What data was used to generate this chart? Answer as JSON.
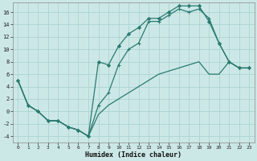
{
  "xlabel": "Humidex (Indice chaleur)",
  "bg_color": "#cce8e6",
  "grid_color": "#aad4d2",
  "line_color": "#2a7a70",
  "xlim": [
    -0.5,
    23.5
  ],
  "ylim": [
    -5,
    17.5
  ],
  "xticks": [
    0,
    1,
    2,
    3,
    4,
    5,
    6,
    7,
    8,
    9,
    10,
    11,
    12,
    13,
    14,
    15,
    16,
    17,
    18,
    19,
    20,
    21,
    22,
    23
  ],
  "yticks": [
    -4,
    -2,
    0,
    2,
    4,
    6,
    8,
    10,
    12,
    14,
    16
  ],
  "line1_x": [
    0,
    1,
    2,
    3,
    4,
    5,
    6,
    7,
    8,
    9,
    10,
    11,
    12,
    13,
    14,
    15,
    16,
    17,
    18,
    19,
    20,
    21,
    22,
    23
  ],
  "line1_y": [
    5,
    1,
    0,
    -1.5,
    -1.5,
    -2.5,
    -3,
    -4,
    8,
    7.5,
    10.5,
    12.5,
    13.5,
    15,
    15,
    16,
    17,
    17,
    17,
    14.5,
    11,
    8,
    7,
    7
  ],
  "line2_x": [
    0,
    1,
    2,
    3,
    4,
    5,
    6,
    7,
    8,
    9,
    10,
    11,
    12,
    13,
    14,
    15,
    16,
    17,
    18,
    19,
    20,
    21,
    22,
    23
  ],
  "line2_y": [
    5,
    1,
    0,
    -1.5,
    -1.5,
    -2.5,
    -3,
    -4,
    1,
    3,
    7.5,
    10,
    11,
    14.5,
    14.5,
    15.5,
    16.5,
    16,
    16.5,
    15,
    11,
    8,
    7,
    7
  ],
  "line3_x": [
    0,
    1,
    2,
    3,
    4,
    5,
    6,
    7,
    8,
    9,
    10,
    11,
    12,
    13,
    14,
    15,
    16,
    17,
    18,
    19,
    20,
    21,
    22,
    23
  ],
  "line3_y": [
    5,
    1,
    0,
    -1.5,
    -1.5,
    -2.5,
    -3,
    -4,
    -0.5,
    1,
    2,
    3,
    4,
    5,
    6,
    6.5,
    7,
    7.5,
    8,
    6,
    6,
    8,
    7,
    7
  ]
}
